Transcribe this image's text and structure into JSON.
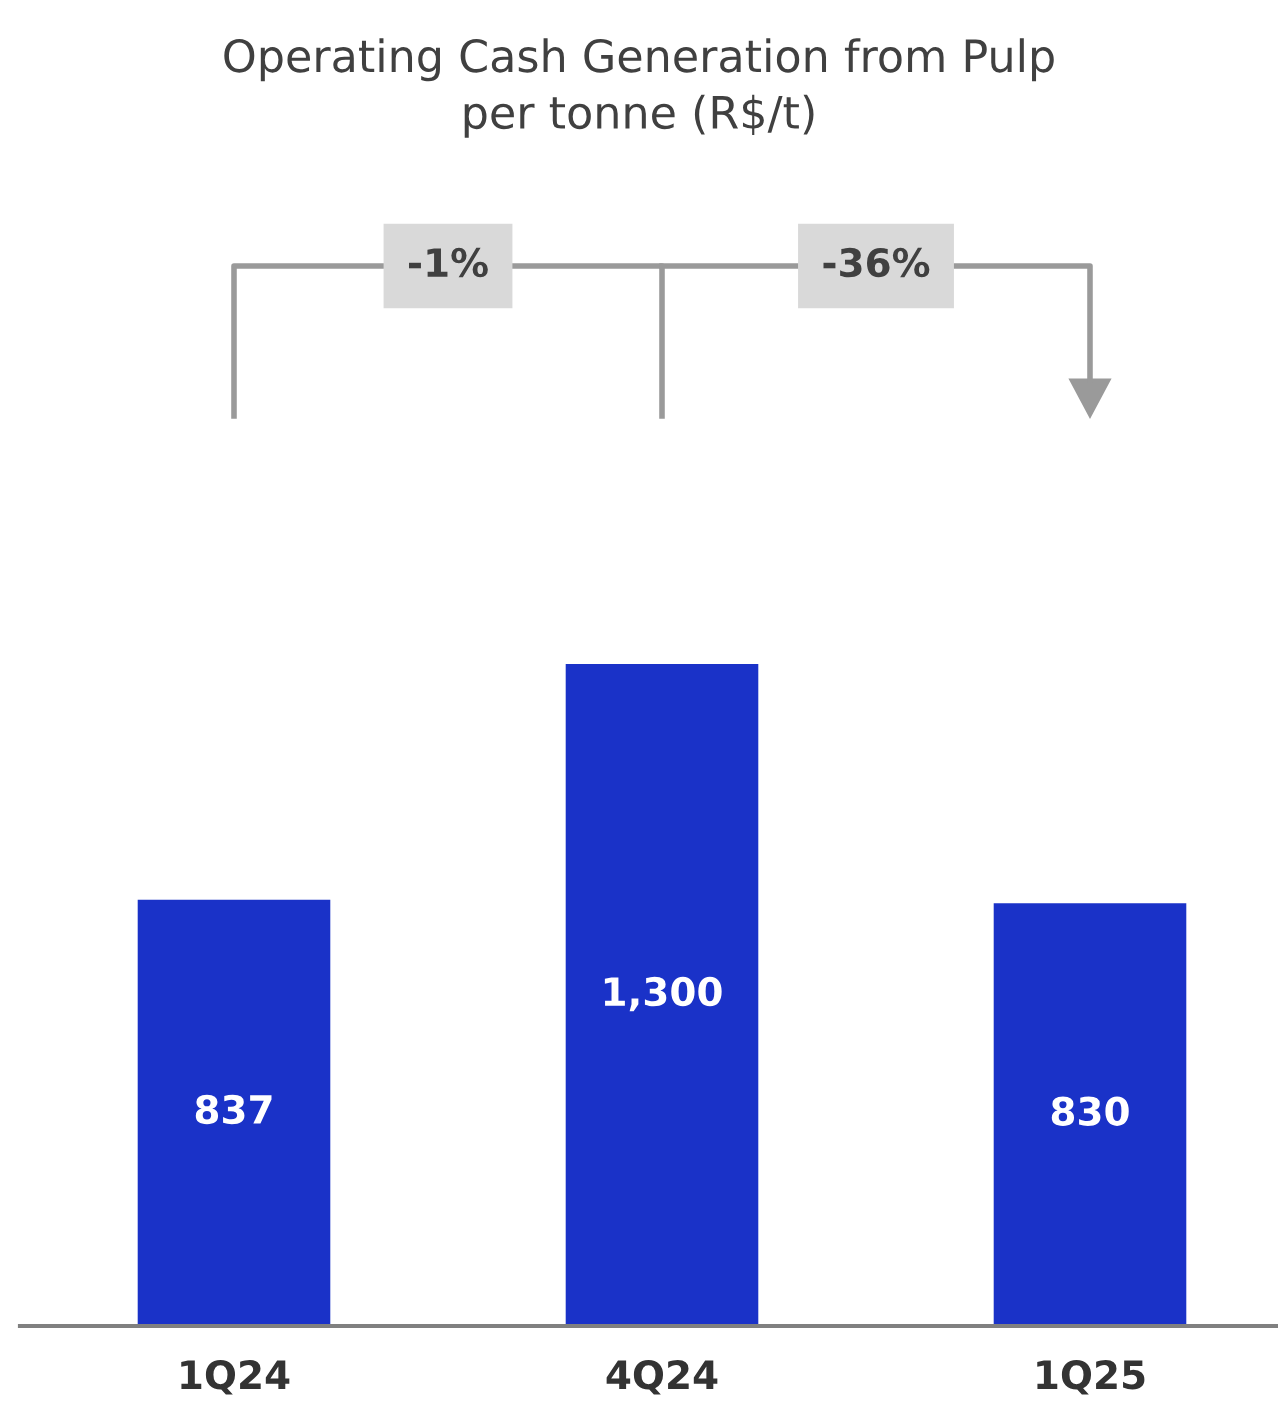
{
  "chart_data": {
    "type": "bar",
    "title": "Operating Cash Generation from Pulp\nper tonne (R$/t)",
    "categories": [
      "1Q24",
      "4Q24",
      "1Q25"
    ],
    "values": [
      837,
      1300,
      830
    ],
    "value_labels": [
      "837",
      "1,300",
      "830"
    ],
    "color": "#1a32c8",
    "annotations": [
      "-1%",
      "-36%"
    ],
    "grid": false,
    "legend": false
  }
}
